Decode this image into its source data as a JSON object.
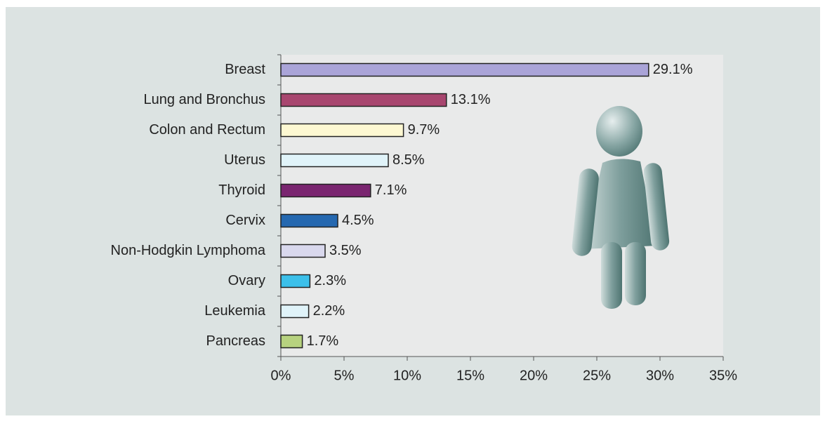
{
  "chart_data": {
    "type": "hbar",
    "categories": [
      "Breast",
      "Lung and Bronchus",
      "Colon and Rectum",
      "Uterus",
      "Thyroid",
      "Cervix",
      "Non-Hodgkin Lymphoma",
      "Ovary",
      "Leukemia",
      "Pancreas"
    ],
    "values": [
      29.1,
      13.1,
      9.7,
      8.5,
      7.1,
      4.5,
      3.5,
      2.3,
      2.2,
      1.7
    ],
    "value_labels": [
      "29.1%",
      "13.1%",
      "9.7%",
      "8.5%",
      "7.1%",
      "4.5%",
      "3.5%",
      "2.3%",
      "2.2%",
      "1.7%"
    ],
    "colors": [
      "#aaa4d8",
      "#a8466f",
      "#fdf8d2",
      "#e0f3f9",
      "#7a2570",
      "#2568b0",
      "#d9d8ed",
      "#3cc0ea",
      "#e0f3f9",
      "#b7d27f"
    ],
    "xlim": [
      0,
      35
    ],
    "xticks": [
      {
        "value": 0,
        "label": "0%"
      },
      {
        "value": 5,
        "label": "5%"
      },
      {
        "value": 10,
        "label": "10%"
      },
      {
        "value": 15,
        "label": "15%"
      },
      {
        "value": 20,
        "label": "20%"
      },
      {
        "value": 25,
        "label": "25%"
      },
      {
        "value": 30,
        "label": "30%"
      },
      {
        "value": 35,
        "label": "35%"
      }
    ],
    "grid": false
  }
}
